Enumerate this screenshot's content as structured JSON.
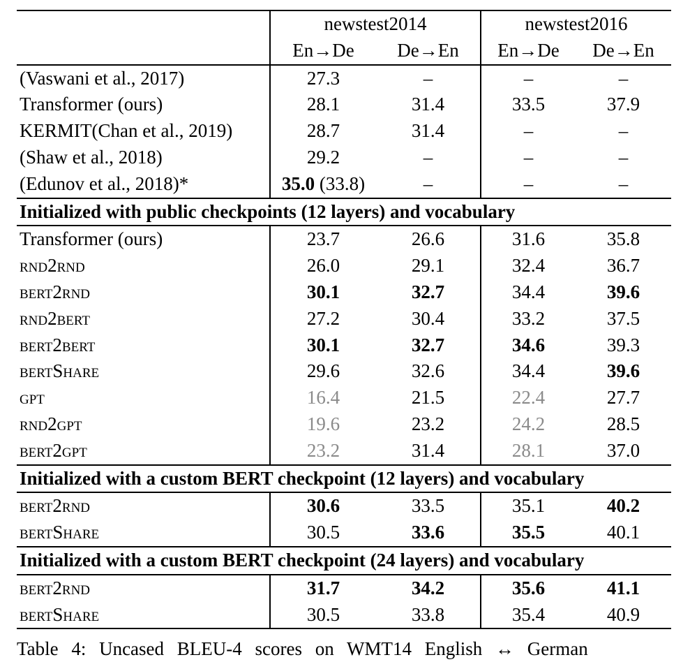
{
  "header": {
    "group1": "newstest2014",
    "group2": "newstest2016",
    "sub": [
      "En→De",
      "De→En",
      "En→De",
      "De→En"
    ]
  },
  "rows_a": [
    {
      "label": "(Vaswani et al., 2017)",
      "v": [
        "27.3",
        "–",
        "–",
        "–"
      ]
    },
    {
      "label": "Transformer (ours)",
      "v": [
        "28.1",
        "31.4",
        "33.5",
        "37.9"
      ]
    },
    {
      "label": "KERMIT(Chan et al., 2019)",
      "v": [
        "28.7",
        "31.4",
        "–",
        "–"
      ]
    },
    {
      "label": "(Shaw et al., 2018)",
      "v": [
        "29.2",
        "–",
        "–",
        "–"
      ]
    },
    {
      "label": "(Edunov et al., 2018)*",
      "v": [
        "35.0",
        "–",
        "–",
        "–"
      ],
      "extra": "(33.8)"
    }
  ],
  "section1": "Initialized with public checkpoints (12 layers) and vocabulary",
  "rows_b": [
    {
      "label": "Transformer (ours)",
      "v": [
        "23.7",
        "26.6",
        "31.6",
        "35.8"
      ]
    },
    {
      "label": "rnd2rnd",
      "v": [
        "26.0",
        "29.1",
        "32.4",
        "36.7"
      ]
    },
    {
      "label": "bert2rnd",
      "v": [
        "30.1",
        "32.7",
        "34.4",
        "39.6"
      ]
    },
    {
      "label": "rnd2bert",
      "v": [
        "27.2",
        "30.4",
        "33.2",
        "37.5"
      ]
    },
    {
      "label": "bert2bert",
      "v": [
        "30.1",
        "32.7",
        "34.6",
        "39.3"
      ]
    },
    {
      "label": "bertShare",
      "v": [
        "29.6",
        "32.6",
        "34.4",
        "39.6"
      ]
    },
    {
      "label": "gpt",
      "v": [
        "16.4",
        "21.5",
        "22.4",
        "27.7"
      ]
    },
    {
      "label": "rnd2gpt",
      "v": [
        "19.6",
        "23.2",
        "24.2",
        "28.5"
      ]
    },
    {
      "label": "bert2gpt",
      "v": [
        "23.2",
        "31.4",
        "28.1",
        "37.0"
      ]
    }
  ],
  "section2": "Initialized with a custom BERT checkpoint (12 layers) and vocabulary",
  "rows_c": [
    {
      "label": "bert2rnd",
      "v": [
        "30.6",
        "33.5",
        "35.1",
        "40.2"
      ]
    },
    {
      "label": "bertShare",
      "v": [
        "30.5",
        "33.6",
        "35.5",
        "40.1"
      ]
    }
  ],
  "section3": "Initialized with a custom BERT checkpoint (24 layers) and vocabulary",
  "rows_d": [
    {
      "label": "bert2rnd",
      "v": [
        "31.7",
        "34.2",
        "35.6",
        "41.1"
      ]
    },
    {
      "label": "bertShare",
      "v": [
        "30.5",
        "33.8",
        "35.4",
        "40.9"
      ]
    }
  ],
  "caption": "Table 4: Uncased BLEU-4 scores on WMT14 English ↔ German"
}
